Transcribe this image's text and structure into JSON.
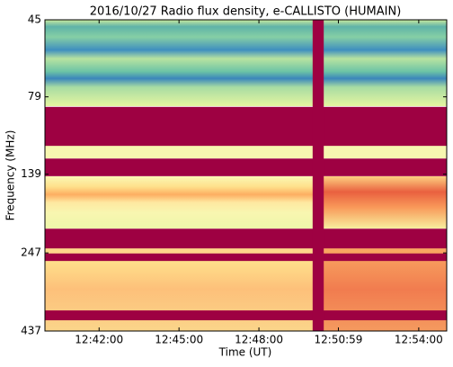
{
  "chart_data": {
    "type": "spectrogram",
    "title": "2016/10/27  Radio flux density, e-CALLISTO (HUMAIN)",
    "x_label": "Time (UT)",
    "y_label": "Frequency (MHz)",
    "xlim": [
      45598,
      46503
    ],
    "xticks": [
      {
        "value": 45720,
        "label": "12:42:00"
      },
      {
        "value": 45900,
        "label": "12:45:00"
      },
      {
        "value": 46080,
        "label": "12:48:00"
      },
      {
        "value": 46259,
        "label": "12:50:59"
      },
      {
        "value": 46440,
        "label": "12:54:00"
      }
    ],
    "ylim": [
      45,
      437
    ],
    "y_scale": "log",
    "y_inverted": true,
    "yticks": [
      45,
      79,
      139,
      247,
      437
    ],
    "masked_bands": [
      [
        85,
        113
      ],
      [
        124,
        141
      ],
      [
        207,
        239
      ],
      [
        248,
        262
      ],
      [
        376,
        404
      ]
    ],
    "time_gap": [
      46201,
      46226
    ],
    "mask_color": "#9e0142"
  }
}
